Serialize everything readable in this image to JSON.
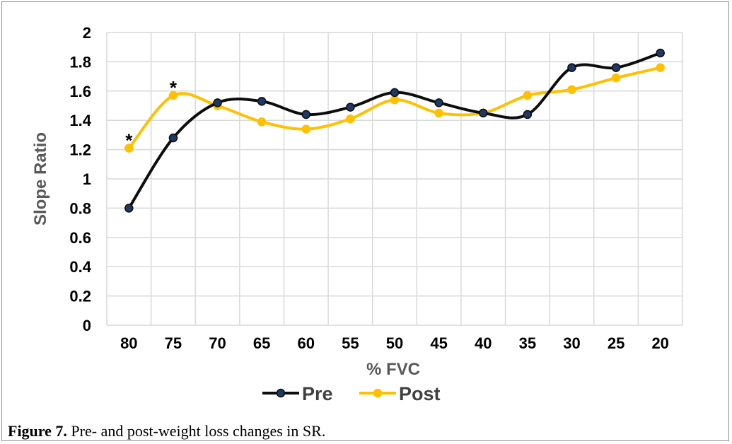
{
  "chart_data": {
    "type": "line",
    "xlabel": "% FVC",
    "ylabel": "Slope Ratio",
    "categories": [
      "80",
      "75",
      "70",
      "65",
      "60",
      "55",
      "50",
      "45",
      "40",
      "35",
      "30",
      "25",
      "20"
    ],
    "ylim": [
      0,
      2
    ],
    "yticks": [
      "0",
      "0.2",
      "0.4",
      "0.6",
      "0.8",
      "1",
      "1.2",
      "1.4",
      "1.6",
      "1.8",
      "2"
    ],
    "grid": true,
    "legend_position": "bottom",
    "series": [
      {
        "name": "Pre",
        "color": "#0d0d0d",
        "marker_fill": "#1f3864",
        "values": [
          0.8,
          1.28,
          1.52,
          1.53,
          1.44,
          1.49,
          1.59,
          1.52,
          1.45,
          1.44,
          1.76,
          1.76,
          1.86
        ]
      },
      {
        "name": "Post",
        "color": "#ffc000",
        "marker_fill": "#ffc000",
        "values": [
          1.21,
          1.57,
          1.5,
          1.39,
          1.34,
          1.41,
          1.54,
          1.45,
          1.45,
          1.57,
          1.61,
          1.69,
          1.76
        ]
      }
    ],
    "annotations": [
      {
        "text": "*",
        "category": "80",
        "series": "Post"
      },
      {
        "text": "*",
        "category": "75",
        "series": "Post"
      }
    ]
  },
  "caption": {
    "label": "Figure 7.",
    "text": " Pre- and post-weight loss changes in SR."
  }
}
